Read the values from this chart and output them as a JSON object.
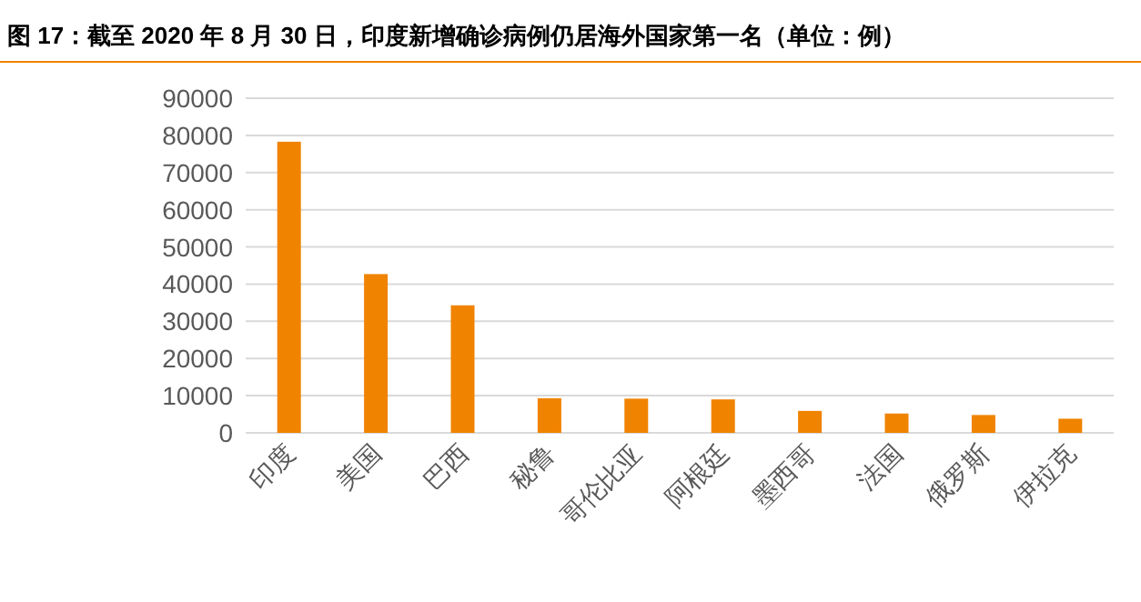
{
  "chart_data": {
    "type": "bar",
    "title": "图 17：截至 2020 年 8 月 30 日，印度新增确诊病例仍居海外国家第一名（单位：例）",
    "categories": [
      "印度",
      "美国",
      "巴西",
      "秘鲁",
      "哥伦比亚",
      "阿根廷",
      "墨西哥",
      "法国",
      "俄罗斯",
      "伊拉克"
    ],
    "values": [
      78300,
      42700,
      34300,
      9300,
      9200,
      9000,
      5900,
      5200,
      4800,
      3800
    ],
    "color": "#f08300",
    "ylim": [
      0,
      90000
    ],
    "yticks": [
      0,
      10000,
      20000,
      30000,
      40000,
      50000,
      60000,
      70000,
      80000,
      90000
    ],
    "grid": "y"
  }
}
